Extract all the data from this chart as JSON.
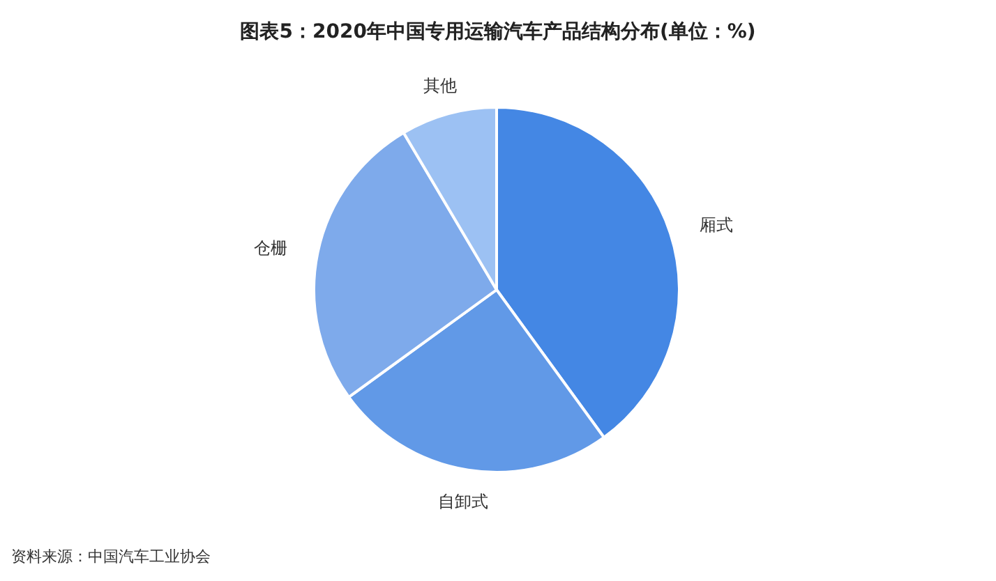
{
  "chart_data": {
    "type": "pie",
    "title": "图表5：2020年中国专用运输汽车产品结构分布(单位：%)",
    "categories": [
      "厢式",
      "自卸式",
      "仓栅",
      "其他"
    ],
    "values": [
      40,
      25,
      26.5,
      8.5
    ],
    "colors": [
      "#4487e4",
      "#6199e7",
      "#7eaaeb",
      "#9cc1f3"
    ],
    "annotations": [
      "资料来源：中国汽车工业协会"
    ]
  }
}
